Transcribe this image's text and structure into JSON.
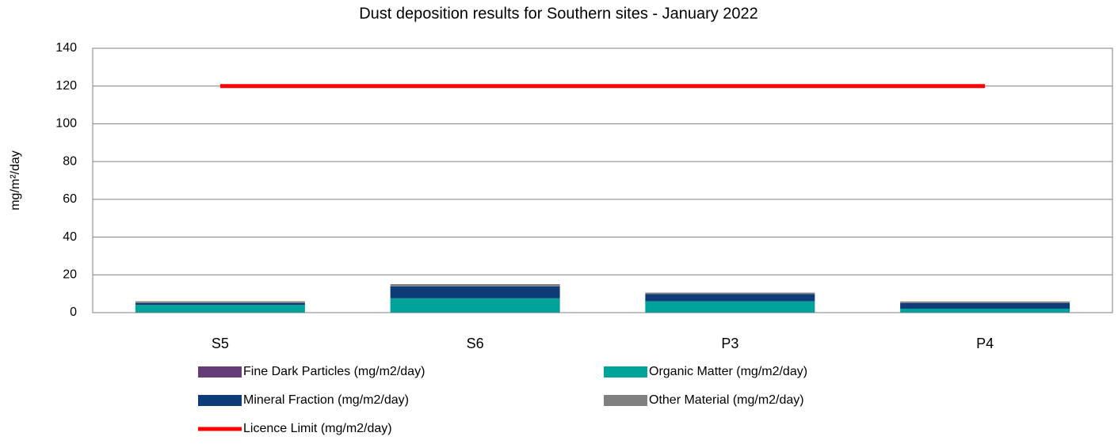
{
  "chart_data": {
    "type": "bar",
    "stacked": true,
    "title": "Dust deposition results for Southern sites - January 2022",
    "y_label": "mg/m²/day",
    "categories": [
      "S5",
      "S6",
      "P3",
      "P4"
    ],
    "series": [
      {
        "name": "Fine Dark Particles (mg/m2/day)",
        "color": "#643c78",
        "type": "bar",
        "values": [
          0.1,
          0.1,
          0.1,
          0.1
        ]
      },
      {
        "name": "Organic Matter (mg/m2/day)",
        "color": "#00a39a",
        "type": "bar",
        "values": [
          4.0,
          7.5,
          5.9,
          2.0
        ]
      },
      {
        "name": "Mineral Fraction (mg/m2/day)",
        "color": "#0d3c78",
        "type": "bar",
        "values": [
          1.0,
          6.3,
          3.8,
          3.0
        ]
      },
      {
        "name": "Other Material (mg/m2/day)",
        "color": "#808080",
        "type": "bar",
        "values": [
          0.9,
          1.2,
          0.8,
          0.8
        ]
      },
      {
        "name": "Licence Limit  (mg/m2/day)",
        "color": "#ff0000",
        "type": "line",
        "values": [
          120,
          120,
          120,
          120
        ]
      }
    ],
    "ylim": [
      0,
      140
    ],
    "yticks": [
      0,
      20,
      40,
      60,
      80,
      100,
      120,
      140
    ],
    "grid": true
  }
}
